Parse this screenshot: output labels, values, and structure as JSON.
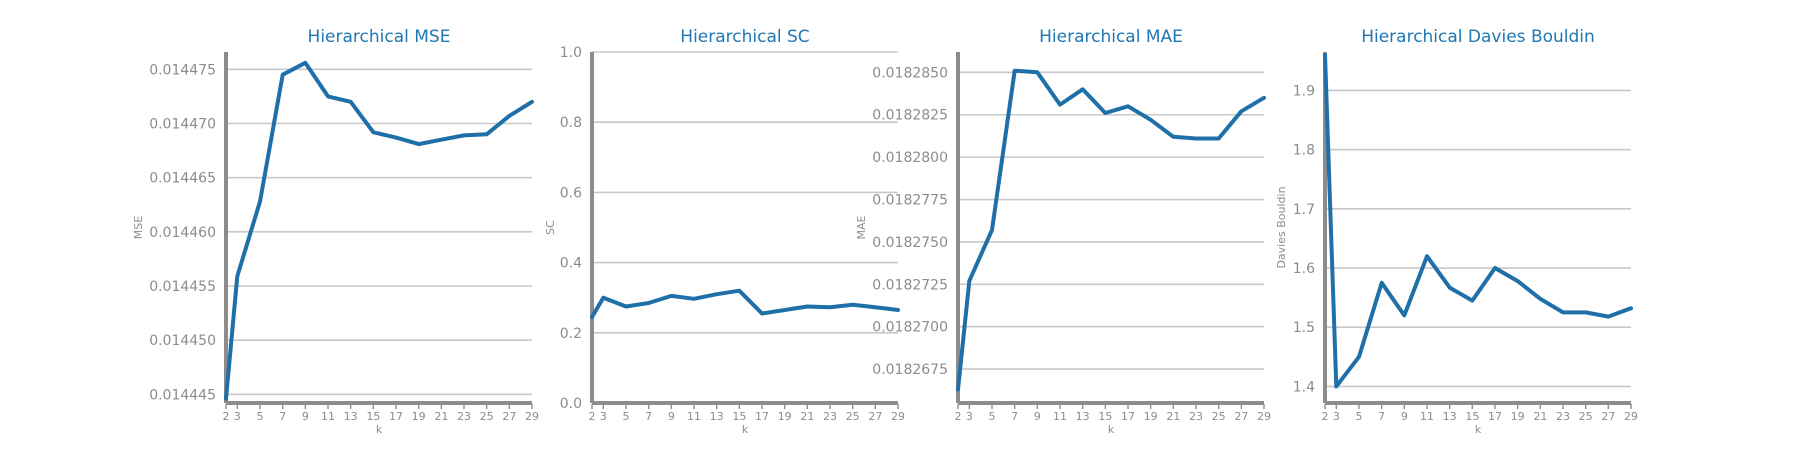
{
  "chart_data": [
    {
      "type": "line",
      "title": "Hierarchical MSE",
      "xlabel": "k",
      "ylabel": "MSE",
      "x": [
        2,
        3,
        5,
        7,
        9,
        11,
        13,
        15,
        17,
        19,
        21,
        23,
        25,
        27,
        29
      ],
      "y": [
        0.0144446,
        0.0144559,
        0.0144628,
        0.0144745,
        0.0144756,
        0.0144725,
        0.014472,
        0.0144692,
        0.0144687,
        0.0144681,
        0.0144685,
        0.0144689,
        0.014469,
        0.0144707,
        0.014472
      ],
      "ylim": [
        0.0144442,
        0.0144766
      ],
      "yticks": [
        0.014445,
        0.01445,
        0.014455,
        0.01446,
        0.014465,
        0.01447,
        0.014475
      ],
      "ytick_labels": [
        "0.014445",
        "0.014450",
        "0.014455",
        "0.014460",
        "0.014465",
        "0.014470",
        "0.014475"
      ],
      "xticks": [
        2,
        3,
        5,
        7,
        9,
        11,
        13,
        15,
        17,
        19,
        21,
        23,
        25,
        27,
        29
      ],
      "grid": true
    },
    {
      "type": "line",
      "title": "Hierarchical SC",
      "xlabel": "k",
      "ylabel": "SC",
      "x": [
        2,
        3,
        5,
        7,
        9,
        11,
        13,
        15,
        17,
        19,
        21,
        23,
        25,
        27,
        29
      ],
      "y": [
        0.245,
        0.3,
        0.275,
        0.285,
        0.305,
        0.297,
        0.31,
        0.32,
        0.255,
        0.265,
        0.275,
        0.273,
        0.28,
        0.273,
        0.265
      ],
      "ylim": [
        0.0,
        1.0
      ],
      "yticks": [
        0.0,
        0.2,
        0.4,
        0.6,
        0.8,
        1.0
      ],
      "ytick_labels": [
        "0.0",
        "0.2",
        "0.4",
        "0.6",
        "0.8",
        "1.0"
      ],
      "xticks": [
        2,
        3,
        5,
        7,
        9,
        11,
        13,
        15,
        17,
        19,
        21,
        23,
        25,
        27,
        29
      ],
      "grid": true
    },
    {
      "type": "line",
      "title": "Hierarchical MAE",
      "xlabel": "k",
      "ylabel": "MAE",
      "x": [
        2,
        3,
        5,
        7,
        9,
        11,
        13,
        15,
        17,
        19,
        21,
        23,
        25,
        27,
        29
      ],
      "y": [
        0.0182663,
        0.0182727,
        0.0182757,
        0.0182851,
        0.018285,
        0.0182831,
        0.018284,
        0.0182826,
        0.018283,
        0.0182822,
        0.0182812,
        0.0182811,
        0.0182811,
        0.0182827,
        0.0182835
      ],
      "ylim": [
        0.0182655,
        0.0182862
      ],
      "yticks": [
        0.0182675,
        0.01827,
        0.0182725,
        0.018275,
        0.0182775,
        0.01828,
        0.0182825,
        0.018285
      ],
      "ytick_labels": [
        "0.0182675",
        "0.0182700",
        "0.0182725",
        "0.0182750",
        "0.0182775",
        "0.0182800",
        "0.0182825",
        "0.0182850"
      ],
      "xticks": [
        2,
        3,
        5,
        7,
        9,
        11,
        13,
        15,
        17,
        19,
        21,
        23,
        25,
        27,
        29
      ],
      "grid": true
    },
    {
      "type": "line",
      "title": "Hierarchical Davies Bouldin",
      "xlabel": "k",
      "ylabel": "Davies Bouldin",
      "x": [
        2,
        3,
        5,
        7,
        9,
        11,
        13,
        15,
        17,
        19,
        21,
        23,
        25,
        27,
        29
      ],
      "y": [
        1.96,
        1.4,
        1.45,
        1.575,
        1.52,
        1.62,
        1.567,
        1.545,
        1.6,
        1.578,
        1.548,
        1.525,
        1.525,
        1.518,
        1.532
      ],
      "ylim": [
        1.372,
        1.965
      ],
      "yticks": [
        1.4,
        1.5,
        1.6,
        1.7,
        1.8,
        1.9
      ],
      "ytick_labels": [
        "1.4",
        "1.5",
        "1.6",
        "1.7",
        "1.8",
        "1.9"
      ],
      "xticks": [
        2,
        3,
        5,
        7,
        9,
        11,
        13,
        15,
        17,
        19,
        21,
        23,
        25,
        27,
        29
      ],
      "grid": true
    }
  ],
  "colors": {
    "line": "#1f6fa8",
    "title": "#1f77b4",
    "axis": "#8c8c8c",
    "grid": "#c8c8c8"
  }
}
